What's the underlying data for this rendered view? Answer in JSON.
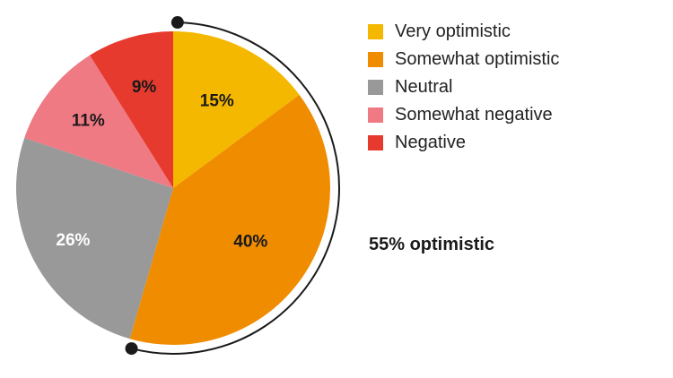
{
  "chart_data": {
    "type": "pie",
    "title": "",
    "legend_position": "right",
    "slices": [
      {
        "name": "Very optimistic",
        "value": 15,
        "label": "15%",
        "color": "#F5B800",
        "label_color": "#1a1a1a"
      },
      {
        "name": "Somewhat optimistic",
        "value": 40,
        "label": "40%",
        "color": "#F08C00",
        "label_color": "#1a1a1a"
      },
      {
        "name": "Neutral",
        "value": 26,
        "label": "26%",
        "color": "#999999",
        "label_color": "#ffffff"
      },
      {
        "name": "Somewhat negative",
        "value": 11,
        "label": "11%",
        "color": "#EF7A83",
        "label_color": "#1a1a1a"
      },
      {
        "name": "Negative",
        "value": 9,
        "label": "9%",
        "color": "#E63A2E",
        "label_color": "#1a1a1a"
      }
    ],
    "annotation": {
      "text": "55% optimistic",
      "covers": [
        "Very optimistic",
        "Somewhat optimistic"
      ],
      "value": 55
    }
  }
}
